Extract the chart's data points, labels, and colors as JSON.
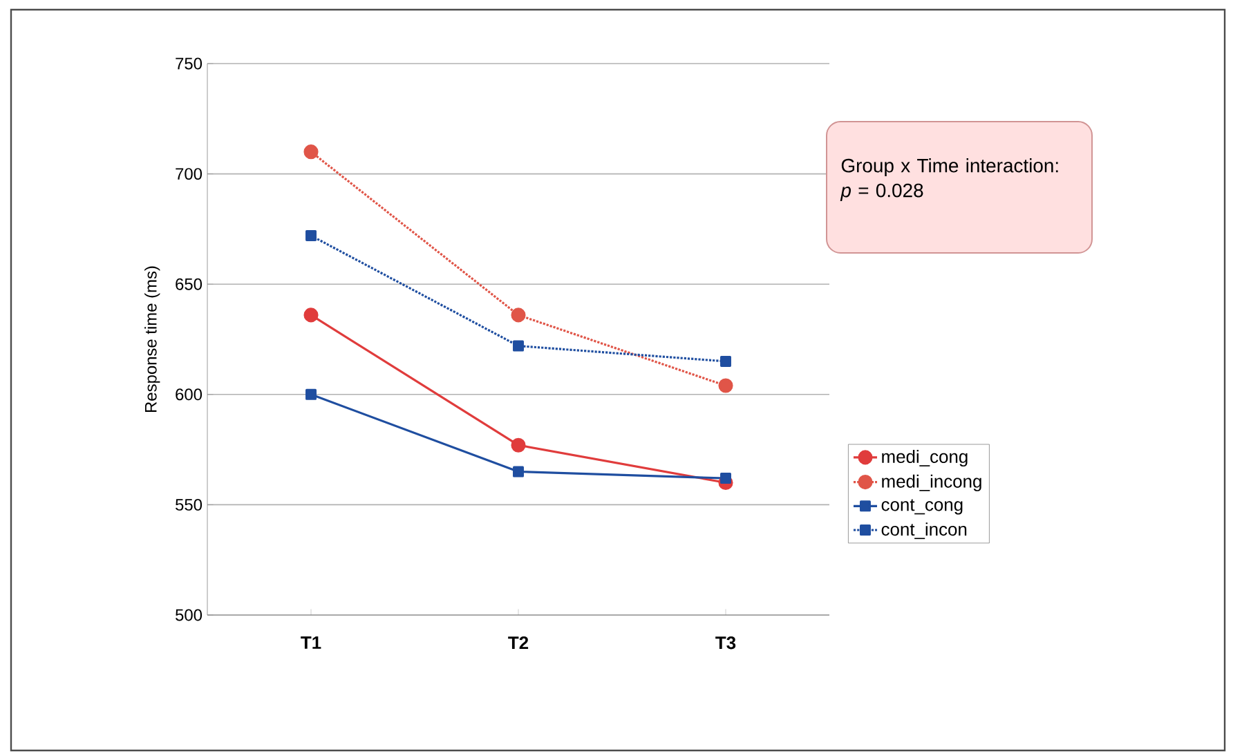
{
  "chart_data": {
    "type": "line",
    "ylabel": "Response time (ms)",
    "categories": [
      "T1",
      "T2",
      "T3"
    ],
    "ylim": [
      500,
      750
    ],
    "yticks": [
      500,
      550,
      600,
      650,
      700,
      750
    ],
    "grid": "y",
    "legend": "right",
    "annotations": [
      "Group x Time interaction: *p* = 0.028"
    ],
    "series": [
      {
        "name": "medi_cong",
        "color": "#e03c3c",
        "values": [
          636,
          577,
          560
        ],
        "marker": "circle",
        "line_style": "solid"
      },
      {
        "name": "medi_incong",
        "color": "#e05548",
        "values": [
          710,
          636,
          604
        ],
        "marker": "circle",
        "line_style": "dotted"
      },
      {
        "name": "cont_cong",
        "color": "#1f4ea0",
        "values": [
          600,
          565,
          562
        ],
        "marker": "square",
        "line_style": "solid"
      },
      {
        "name": "cont_incon",
        "color": "#1f4ea0",
        "values": [
          672,
          622,
          615
        ],
        "marker": "square",
        "line_style": "dotted"
      }
    ]
  }
}
